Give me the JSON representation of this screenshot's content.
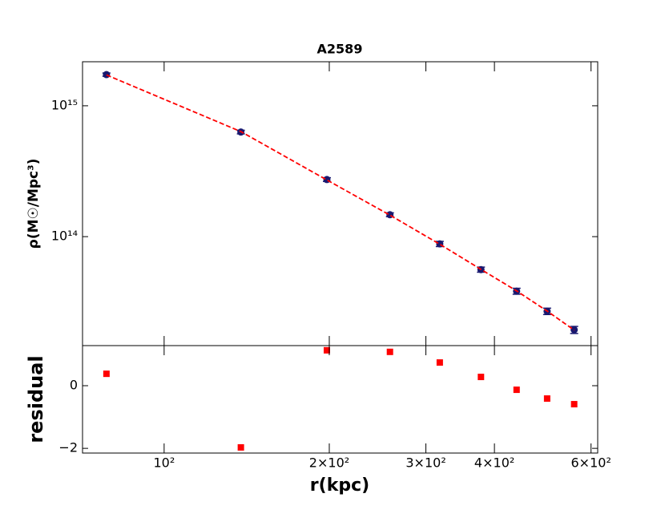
{
  "chart_data": [
    {
      "type": "scatter",
      "title": "A2589",
      "y_label": "ρ(M☉/Mpc³)",
      "xscale": "log",
      "yscale": "log",
      "x": [
        78.5,
        138,
        198,
        258,
        318,
        378,
        439,
        499,
        559
      ],
      "series": [
        {
          "type": "errorbar",
          "color": "#191970",
          "values": [
            1730000000000000.0,
            630000000000000.0,
            273000000000000.0,
            147000000000000.0,
            88000000000000.0,
            56000000000000.0,
            38300000000000.0,
            26900000000000.0,
            19400000000000.0
          ],
          "errors": [
            50000000000000.0,
            20000000000000.0,
            9000000000000.0,
            5000000000000.0,
            4000000000000.0,
            2500000000000.0,
            2000000000000.0,
            1500000000000.0,
            1200000000000.0
          ]
        },
        {
          "type": "line",
          "style": "dashed",
          "color": "#ff0000",
          "values": [
            1720000000000000.0,
            635000000000000.0,
            271000000000000.0,
            146000000000000.0,
            87500000000000.0,
            56200000000000.0,
            38500000000000.0,
            27000000000000.0,
            19300000000000.0
          ]
        }
      ],
      "xlim": [
        71,
        617
      ],
      "ylim": [
        14700000000000.0,
        2170000000000000.0
      ],
      "yticks": [
        {
          "value": 100000000000000.0,
          "label": "10¹⁴"
        },
        {
          "value": 1000000000000000.0,
          "label": "10¹⁵"
        }
      ]
    },
    {
      "type": "scatter",
      "x_label": "r(kpc)",
      "y_label": "residual",
      "xscale": "log",
      "x": [
        78.5,
        138,
        198,
        258,
        318,
        378,
        439,
        499,
        559
      ],
      "values": [
        0.38,
        -1.97,
        1.13,
        1.08,
        0.74,
        0.28,
        -0.13,
        -0.41,
        -0.59
      ],
      "color": "#ff0000",
      "xlim": [
        71,
        617
      ],
      "ylim": [
        -2.15,
        1.28
      ],
      "xticks": [
        {
          "value": 100,
          "label": "10²"
        },
        {
          "value": 200,
          "label": "2×10²"
        },
        {
          "value": 300,
          "label": "3×10²"
        },
        {
          "value": 400,
          "label": "4×10²"
        },
        {
          "value": 600,
          "label": "6×10²"
        }
      ],
      "yticks": [
        {
          "value": -2,
          "label": "−2"
        },
        0
      ]
    }
  ]
}
